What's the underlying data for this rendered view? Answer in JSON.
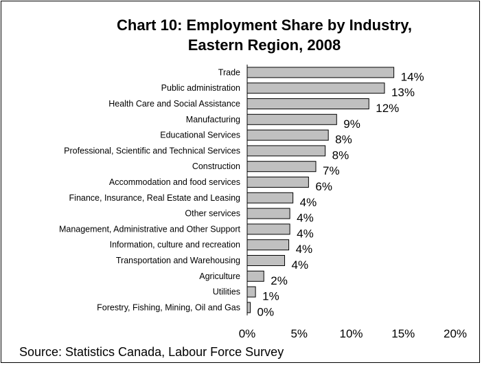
{
  "chart_data": {
    "type": "bar",
    "orientation": "horizontal",
    "title": "Chart 10: Employment Share by Industry, Eastern Region, 2008",
    "title_lines": [
      "Chart 10: Employment Share by Industry,",
      "Eastern Region, 2008"
    ],
    "categories": [
      "Trade",
      "Public administration",
      "Health Care and Social Assistance",
      "Manufacturing",
      "Educational Services",
      "Professional, Scientific and Technical Services",
      "Construction",
      "Accommodation and food services",
      "Finance, Insurance, Real Estate and Leasing",
      "Other services",
      "Management, Administrative and Other Support",
      "Information, culture and recreation",
      "Transportation and Warehousing",
      "Agriculture",
      "Utilities",
      "Forestry, Fishing, Mining, Oil and Gas"
    ],
    "values": [
      14.1,
      13.2,
      11.7,
      8.6,
      7.8,
      7.5,
      6.6,
      5.9,
      4.4,
      4.1,
      4.1,
      4.0,
      3.6,
      1.6,
      0.8,
      0.3
    ],
    "data_labels": [
      "14%",
      "13%",
      "12%",
      "9%",
      "8%",
      "8%",
      "7%",
      "6%",
      "4%",
      "4%",
      "4%",
      "4%",
      "4%",
      "2%",
      "1%",
      "0%"
    ],
    "xlim": [
      0,
      20
    ],
    "xticks": [
      0,
      5,
      10,
      15,
      20
    ],
    "xtick_labels": [
      "0%",
      "5%",
      "10%",
      "15%",
      "20%"
    ],
    "bar_color": "#c0c0c0",
    "bar_edge_color": "#000000",
    "grid": false,
    "legend": "none"
  },
  "source": "Source: Statistics Canada, Labour Force Survey"
}
